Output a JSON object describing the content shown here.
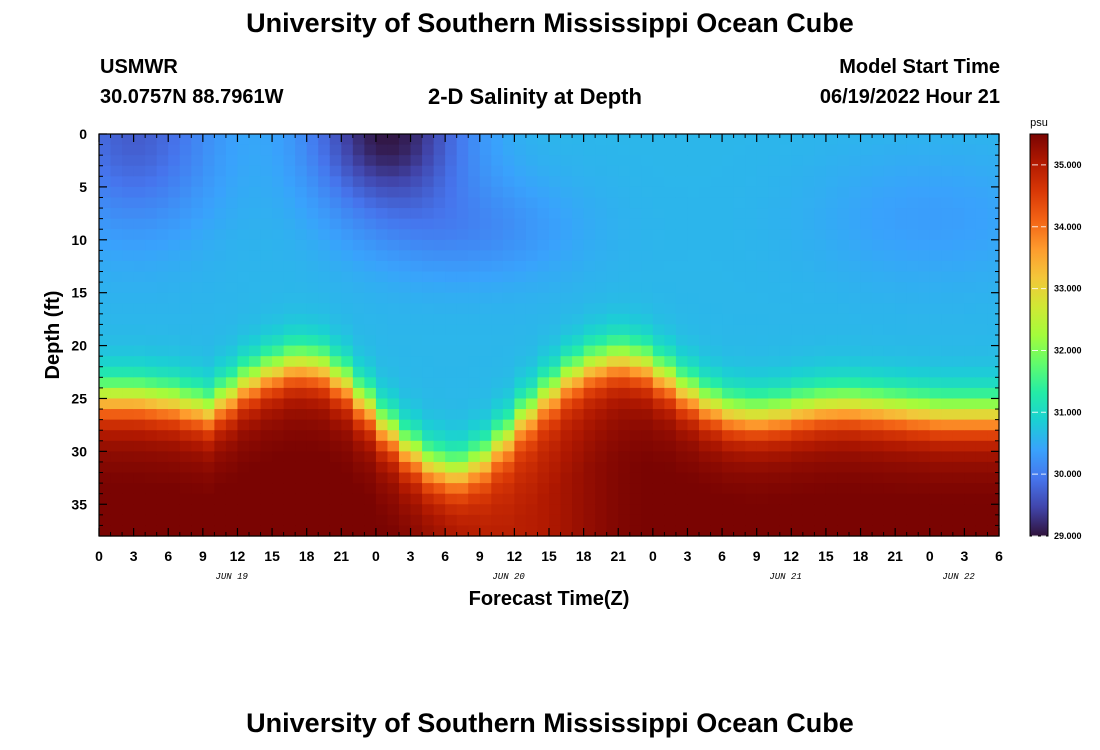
{
  "header": {
    "title": "University of Southern Mississippi Ocean Cube",
    "station": "USMWR",
    "coords": "30.0757N  88.7961W",
    "plot_title": "2-D Salinity at Depth",
    "start_label": "Model Start Time",
    "start_value": "06/19/2022 Hour 21"
  },
  "footer": {
    "title": "University of Southern Mississippi Ocean Cube"
  },
  "chart_data": {
    "type": "heatmap",
    "xlabel": "Forecast Time(Z)",
    "ylabel": "Depth (ft)",
    "x_range_hours": [
      0,
      78
    ],
    "y_range_ft": [
      0,
      38
    ],
    "y_inverted": true,
    "x_tick_labels": [
      "0",
      "3",
      "6",
      "9",
      "12",
      "15",
      "18",
      "21",
      "0",
      "3",
      "6",
      "9",
      "12",
      "15",
      "18",
      "21",
      "0",
      "3",
      "6",
      "9",
      "12",
      "15",
      "18",
      "21",
      "0",
      "3",
      "6"
    ],
    "y_tick_labels": [
      "0",
      "5",
      "10",
      "15",
      "20",
      "25",
      "30",
      "35"
    ],
    "y_tick_values": [
      0,
      5,
      10,
      15,
      20,
      25,
      30,
      35
    ],
    "day_labels": [
      {
        "text": "JUN 19",
        "hour": 11.5
      },
      {
        "text": "JUN 20",
        "hour": 35.5
      },
      {
        "text": "JUN 21",
        "hour": 59.5
      },
      {
        "text": "JUN 22",
        "hour": 74.5
      }
    ],
    "colorbar": {
      "unit": "psu",
      "min": 29.0,
      "max": 35.5,
      "ticks": [
        "29.000",
        "30.000",
        "31.000",
        "32.000",
        "33.000",
        "34.000",
        "35.000"
      ],
      "tick_values": [
        29,
        30,
        31,
        32,
        33,
        34,
        35
      ],
      "colormap": [
        "#30123b",
        "#4145ab",
        "#4675ed",
        "#39a2fc",
        "#1bcfd4",
        "#24eca6",
        "#61fc6c",
        "#a4fc3b",
        "#d1e834",
        "#f3c63a",
        "#fe9b2d",
        "#f36315",
        "#d93806",
        "#b11901",
        "#7a0402"
      ]
    },
    "grid": false,
    "profile_model": {
      "comment": "salinity(x,d) sampled on 78x38 grid; halocline depth by hour keypoints",
      "halocline_depth_keypoints_hours": [
        0,
        3,
        6,
        8,
        9.5,
        11,
        13,
        15,
        17,
        19,
        21,
        23,
        25,
        27,
        29,
        31,
        33,
        35,
        37,
        39,
        41,
        43,
        45,
        47,
        49,
        51,
        53,
        55,
        57,
        59,
        61,
        63,
        65,
        67,
        69,
        71,
        73,
        75,
        78
      ],
      "halocline_depth_keypoints_ft": [
        26.5,
        26.5,
        26.8,
        27.3,
        27.8,
        26.5,
        25.0,
        24.0,
        23.3,
        23.5,
        24.8,
        27.0,
        29.5,
        31.5,
        33.0,
        33.5,
        32.5,
        30.5,
        28.0,
        26.0,
        24.3,
        23.3,
        22.8,
        23.2,
        24.5,
        26.0,
        27.2,
        28.0,
        28.2,
        28.0,
        27.6,
        27.3,
        27.2,
        27.4,
        27.6,
        27.8,
        28.0,
        28.0,
        28.0
      ],
      "surface_min_center_hour": 25,
      "surface_min_value": 29.05,
      "deep_value": 35.3,
      "upper_value": 30.6
    }
  }
}
